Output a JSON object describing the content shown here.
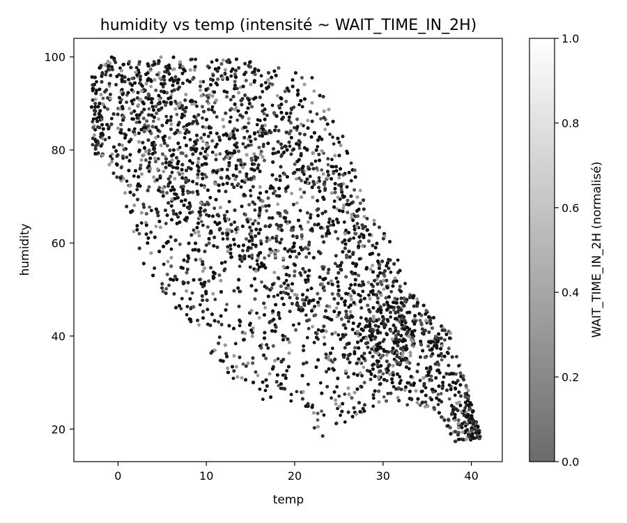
{
  "chart_data": {
    "type": "scatter",
    "title": "humidity vs temp (intensité ~ WAIT_TIME_IN_2H)",
    "xlabel": "temp",
    "ylabel": "humidity",
    "xlim": [
      -5,
      43.5
    ],
    "ylim": [
      13,
      104
    ],
    "xticks": [
      0,
      10,
      20,
      30,
      40
    ],
    "yticks": [
      20,
      40,
      60,
      80,
      100
    ],
    "grid": false,
    "colorbar": {
      "label": "WAIT_TIME_IN_2H (normalisé)",
      "range": [
        0.0,
        1.0
      ],
      "ticks": [
        "0.0",
        "0.2",
        "0.4",
        "0.6",
        "0.8",
        "1.0"
      ],
      "colormap": "gray"
    },
    "point_count_estimate": 12000,
    "envelope": {
      "upper": [
        [
          -3,
          96
        ],
        [
          -1,
          100
        ],
        [
          13,
          100
        ],
        [
          22,
          96
        ],
        [
          26,
          82
        ],
        [
          28,
          68
        ],
        [
          31,
          60
        ],
        [
          33,
          50
        ],
        [
          38,
          40
        ],
        [
          41,
          19
        ]
      ],
      "lower": [
        [
          -2,
          79
        ],
        [
          0,
          73
        ],
        [
          3,
          55
        ],
        [
          8,
          42
        ],
        [
          12,
          33
        ],
        [
          15,
          25
        ],
        [
          19,
          27
        ],
        [
          23,
          18
        ],
        [
          30,
          26
        ],
        [
          36,
          24
        ],
        [
          38,
          17
        ],
        [
          41,
          18
        ]
      ],
      "dense_core": [
        [
          0,
          99
        ],
        [
          16,
          99
        ],
        [
          24,
          82
        ],
        [
          30,
          55
        ],
        [
          34,
          38
        ],
        [
          30,
          30
        ],
        [
          24,
          38
        ],
        [
          18,
          48
        ],
        [
          12,
          58
        ],
        [
          6,
          66
        ],
        [
          2,
          80
        ]
      ]
    },
    "colors": {
      "dark_point": "#111111",
      "mid_point": "#555555",
      "light_point": "#9a9a9a"
    }
  }
}
